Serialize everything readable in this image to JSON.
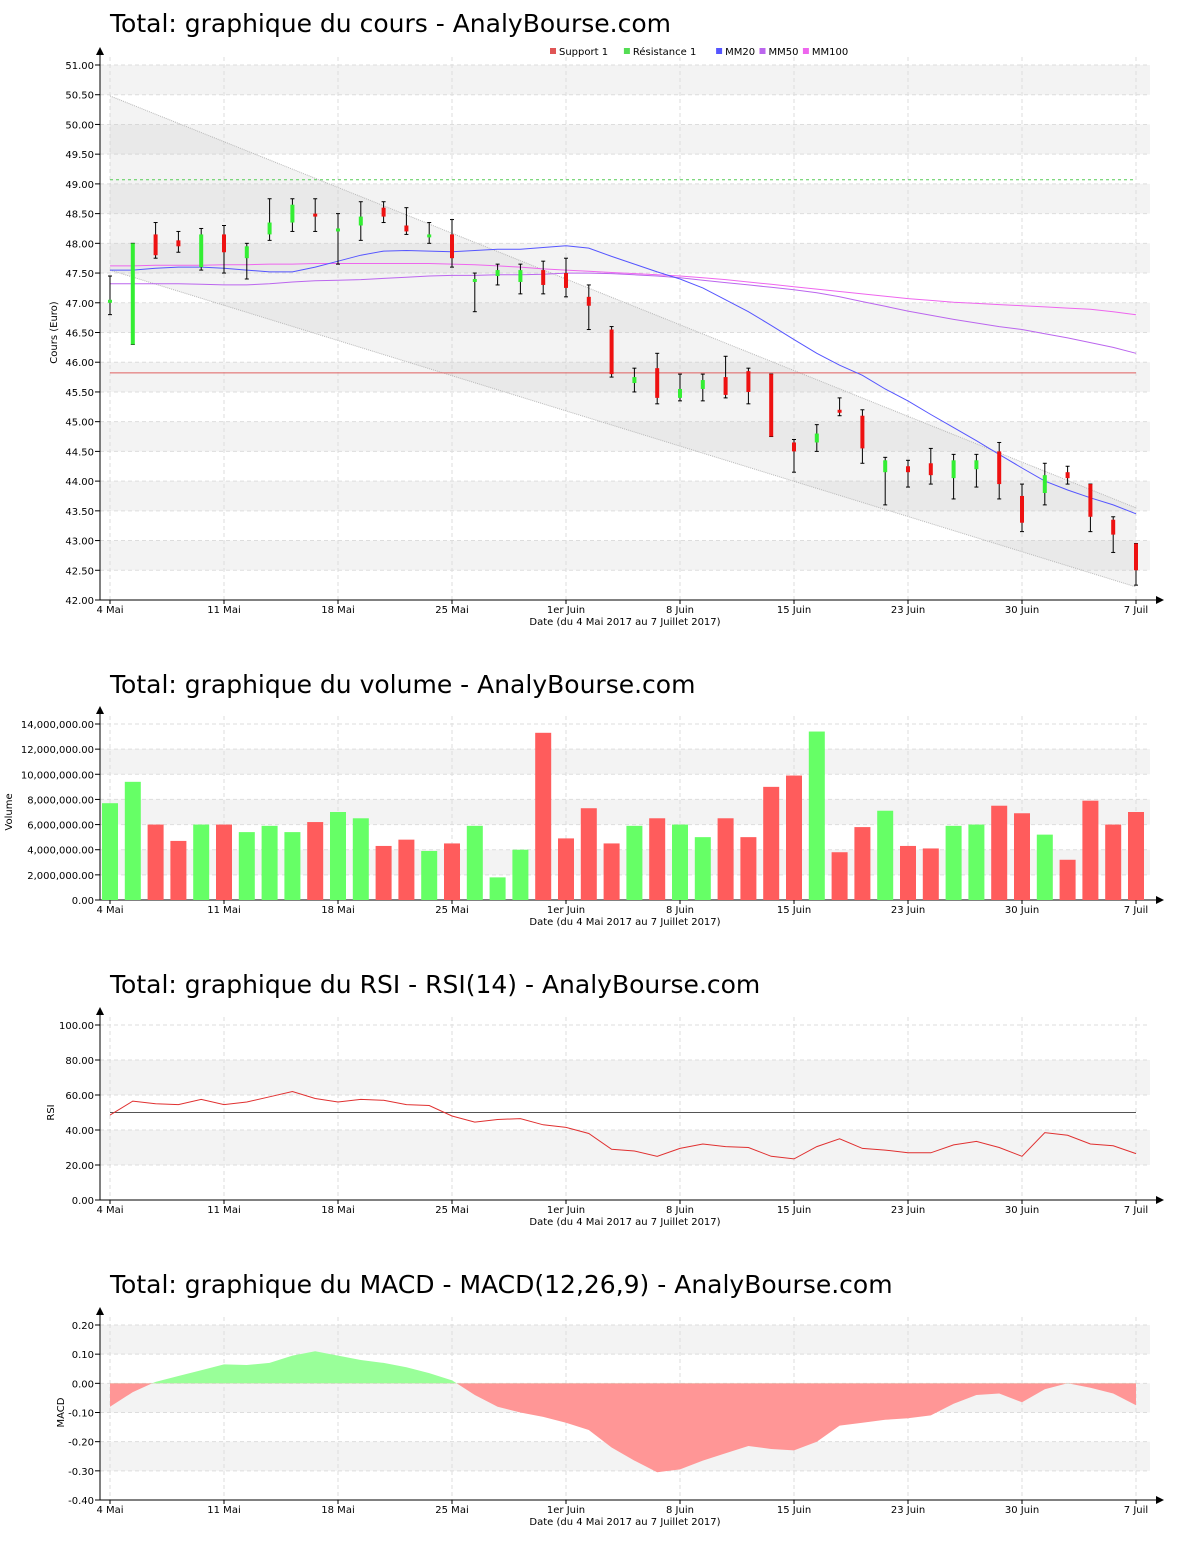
{
  "charts": {
    "price": {
      "title": "Total: graphique du cours - AnalyBourse.com",
      "ylabel": "Cours (Euro)",
      "xlabel": "Date (du 4 Mai 2017 au 7 Juillet 2017)",
      "legend": [
        "Support 1",
        "Résistance 1",
        "MM20",
        "MM50",
        "MM100"
      ]
    },
    "volume": {
      "title": "Total: graphique du volume - AnalyBourse.com",
      "ylabel": "Volume",
      "xlabel": "Date (du 4 Mai 2017 au 7 Juillet 2017)"
    },
    "rsi": {
      "title": "Total: graphique du RSI - RSI(14) - AnalyBourse.com",
      "ylabel": "RSI",
      "xlabel": "Date (du 4 Mai 2017 au 7 Juillet 2017)"
    },
    "macd": {
      "title": "Total: graphique du MACD - MACD(12,26,9) - AnalyBourse.com",
      "ylabel": "MACD",
      "xlabel": "Date (du 4 Mai 2017 au 7 Juillet 2017)"
    }
  },
  "chart_data": [
    {
      "type": "candlestick",
      "title": "Total: graphique du cours - AnalyBourse.com",
      "xlabel": "Date (du 4 Mai 2017 au 7 Juillet 2017)",
      "ylabel": "Cours (Euro)",
      "ylim": [
        42.0,
        51.0
      ],
      "yticks": [
        "42.00",
        "42.50",
        "43.00",
        "43.50",
        "44.00",
        "44.50",
        "45.00",
        "45.50",
        "46.00",
        "46.50",
        "47.00",
        "47.50",
        "48.00",
        "48.50",
        "49.00",
        "49.50",
        "50.00",
        "50.50",
        "51.00"
      ],
      "xticks": [
        {
          "label": "4 Mai",
          "index": 0
        },
        {
          "label": "11 Mai",
          "index": 5
        },
        {
          "label": "18 Mai",
          "index": 10
        },
        {
          "label": "25 Mai",
          "index": 15
        },
        {
          "label": "1er Juin",
          "index": 20
        },
        {
          "label": "8 Juin",
          "index": 25
        },
        {
          "label": "15 Juin",
          "index": 30
        },
        {
          "label": "23 Juin",
          "index": 35
        },
        {
          "label": "30 Juin",
          "index": 40
        },
        {
          "label": "7 Juil",
          "index": 45
        }
      ],
      "legend": [
        "Support 1",
        "Résistance 1",
        "MM20",
        "MM50",
        "MM100"
      ],
      "legend_colors": [
        "#e05555",
        "#55dd55",
        "#5555ff",
        "#bb66ee",
        "#ee66ee"
      ],
      "candles": [
        {
          "o": 47.0,
          "c": 47.05,
          "h": 47.45,
          "l": 46.8
        },
        {
          "o": 46.3,
          "c": 48.0,
          "h": 48.0,
          "l": 46.3
        },
        {
          "o": 48.15,
          "c": 47.8,
          "h": 48.35,
          "l": 47.75
        },
        {
          "o": 48.05,
          "c": 47.95,
          "h": 48.2,
          "l": 47.85
        },
        {
          "o": 47.6,
          "c": 48.15,
          "h": 48.25,
          "l": 47.55
        },
        {
          "o": 48.15,
          "c": 47.85,
          "h": 48.3,
          "l": 47.5
        },
        {
          "o": 47.75,
          "c": 47.95,
          "h": 48.0,
          "l": 47.4
        },
        {
          "o": 48.15,
          "c": 48.35,
          "h": 48.75,
          "l": 48.05
        },
        {
          "o": 48.35,
          "c": 48.65,
          "h": 48.75,
          "l": 48.2
        },
        {
          "o": 48.5,
          "c": 48.45,
          "h": 48.75,
          "l": 48.2
        },
        {
          "o": 48.2,
          "c": 48.25,
          "h": 48.5,
          "l": 47.65
        },
        {
          "o": 48.3,
          "c": 48.45,
          "h": 48.7,
          "l": 48.05
        },
        {
          "o": 48.6,
          "c": 48.45,
          "h": 48.7,
          "l": 48.35
        },
        {
          "o": 48.3,
          "c": 48.2,
          "h": 48.6,
          "l": 48.15
        },
        {
          "o": 48.1,
          "c": 48.15,
          "h": 48.35,
          "l": 48.0
        },
        {
          "o": 48.15,
          "c": 47.75,
          "h": 48.4,
          "l": 47.6
        },
        {
          "o": 47.35,
          "c": 47.4,
          "h": 47.5,
          "l": 46.85
        },
        {
          "o": 47.45,
          "c": 47.55,
          "h": 47.65,
          "l": 47.3
        },
        {
          "o": 47.35,
          "c": 47.55,
          "h": 47.65,
          "l": 47.15
        },
        {
          "o": 47.55,
          "c": 47.3,
          "h": 47.7,
          "l": 47.15
        },
        {
          "o": 47.5,
          "c": 47.25,
          "h": 47.75,
          "l": 47.1
        },
        {
          "o": 47.1,
          "c": 46.95,
          "h": 47.3,
          "l": 46.55
        },
        {
          "o": 46.55,
          "c": 45.8,
          "h": 46.6,
          "l": 45.75
        },
        {
          "o": 45.65,
          "c": 45.75,
          "h": 45.9,
          "l": 45.5
        },
        {
          "o": 45.9,
          "c": 45.4,
          "h": 46.15,
          "l": 45.3
        },
        {
          "o": 45.4,
          "c": 45.55,
          "h": 45.8,
          "l": 45.35
        },
        {
          "o": 45.55,
          "c": 45.7,
          "h": 45.8,
          "l": 45.35
        },
        {
          "o": 45.75,
          "c": 45.45,
          "h": 46.1,
          "l": 45.4
        },
        {
          "o": 45.85,
          "c": 45.5,
          "h": 45.9,
          "l": 45.3
        },
        {
          "o": 45.8,
          "c": 44.75,
          "h": 45.8,
          "l": 44.75
        },
        {
          "o": 44.65,
          "c": 44.5,
          "h": 44.7,
          "l": 44.15
        },
        {
          "o": 44.65,
          "c": 44.8,
          "h": 44.95,
          "l": 44.5
        },
        {
          "o": 45.2,
          "c": 45.15,
          "h": 45.4,
          "l": 45.1
        },
        {
          "o": 45.1,
          "c": 44.55,
          "h": 45.2,
          "l": 44.3
        },
        {
          "o": 44.15,
          "c": 44.35,
          "h": 44.4,
          "l": 43.6
        },
        {
          "o": 44.25,
          "c": 44.15,
          "h": 44.35,
          "l": 43.9
        },
        {
          "o": 44.3,
          "c": 44.1,
          "h": 44.55,
          "l": 43.95
        },
        {
          "o": 44.05,
          "c": 44.35,
          "h": 44.45,
          "l": 43.7
        },
        {
          "o": 44.2,
          "c": 44.35,
          "h": 44.45,
          "l": 43.9
        },
        {
          "o": 44.5,
          "c": 43.95,
          "h": 44.65,
          "l": 43.7
        },
        {
          "o": 43.75,
          "c": 43.3,
          "h": 43.95,
          "l": 43.15
        },
        {
          "o": 43.8,
          "c": 44.1,
          "h": 44.3,
          "l": 43.6
        },
        {
          "o": 44.15,
          "c": 44.05,
          "h": 44.25,
          "l": 43.95
        },
        {
          "o": 43.95,
          "c": 43.4,
          "h": 43.95,
          "l": 43.15
        },
        {
          "o": 43.35,
          "c": 43.1,
          "h": 43.4,
          "l": 42.8
        },
        {
          "o": 42.95,
          "c": 42.5,
          "h": 42.95,
          "l": 42.25
        }
      ],
      "support_1": 45.82,
      "resistance_1": 49.07,
      "channel": {
        "upper": [
          50.48,
          43.55
        ],
        "lower": [
          47.55,
          42.22
        ]
      },
      "mm20": [
        47.55,
        47.55,
        47.58,
        47.6,
        47.6,
        47.58,
        47.55,
        47.52,
        47.52,
        47.6,
        47.7,
        47.8,
        47.87,
        47.88,
        47.87,
        47.86,
        47.88,
        47.9,
        47.9,
        47.93,
        47.96,
        47.92,
        47.78,
        47.65,
        47.52,
        47.4,
        47.25,
        47.05,
        46.85,
        46.62,
        46.38,
        46.15,
        45.95,
        45.78,
        45.55,
        45.35,
        45.12,
        44.9,
        44.68,
        44.45,
        44.22,
        44.0,
        43.85,
        43.72,
        43.6,
        43.45
      ],
      "mm50": [
        47.32,
        47.32,
        47.32,
        47.32,
        47.31,
        47.3,
        47.3,
        47.32,
        47.35,
        47.37,
        47.38,
        47.39,
        47.41,
        47.43,
        47.45,
        47.46,
        47.46,
        47.47,
        47.47,
        47.48,
        47.5,
        47.5,
        47.49,
        47.47,
        47.45,
        47.42,
        47.38,
        47.34,
        47.3,
        47.26,
        47.22,
        47.17,
        47.1,
        47.02,
        46.94,
        46.86,
        46.79,
        46.72,
        46.66,
        46.6,
        46.55,
        46.48,
        46.41,
        46.33,
        46.25,
        46.15
      ],
      "mm100": [
        47.62,
        47.62,
        47.63,
        47.63,
        47.63,
        47.64,
        47.64,
        47.65,
        47.65,
        47.66,
        47.66,
        47.66,
        47.66,
        47.66,
        47.66,
        47.65,
        47.64,
        47.62,
        47.6,
        47.57,
        47.55,
        47.53,
        47.51,
        47.49,
        47.47,
        47.45,
        47.42,
        47.39,
        47.35,
        47.31,
        47.27,
        47.23,
        47.19,
        47.15,
        47.11,
        47.07,
        47.04,
        47.01,
        46.99,
        46.97,
        46.95,
        46.93,
        46.91,
        46.89,
        46.85,
        46.8
      ]
    },
    {
      "type": "bar",
      "title": "Total: graphique du volume - AnalyBourse.com",
      "xlabel": "Date (du 4 Mai 2017 au 7 Juillet 2017)",
      "ylabel": "Volume",
      "ylim": [
        0,
        14000000
      ],
      "yticks": [
        "0.00",
        "2,000,000.00",
        "4,000,000.00",
        "6,000,000.00",
        "8,000,000.00",
        "10,000,000.00",
        "12,000,000.00",
        "14,000,000.00"
      ],
      "xticks": [
        {
          "label": "4 Mai",
          "index": 0
        },
        {
          "label": "11 Mai",
          "index": 5
        },
        {
          "label": "18 Mai",
          "index": 10
        },
        {
          "label": "25 Mai",
          "index": 15
        },
        {
          "label": "1er Juin",
          "index": 20
        },
        {
          "label": "8 Juin",
          "index": 25
        },
        {
          "label": "15 Juin",
          "index": 30
        },
        {
          "label": "23 Juin",
          "index": 35
        },
        {
          "label": "30 Juin",
          "index": 40
        },
        {
          "label": "7 Juil",
          "index": 45
        }
      ],
      "values": [
        7700000,
        9400000,
        6000000,
        4700000,
        6000000,
        6000000,
        5400000,
        5900000,
        5400000,
        6200000,
        7000000,
        6500000,
        4300000,
        4800000,
        3900000,
        4500000,
        5900000,
        1800000,
        4000000,
        13300000,
        4900000,
        7300000,
        4500000,
        5900000,
        6500000,
        6000000,
        5000000,
        6500000,
        5000000,
        9000000,
        9900000,
        13400000,
        3800000,
        5800000,
        7100000,
        4300000,
        4100000,
        5900000,
        6000000,
        7500000,
        6900000,
        5200000,
        3200000,
        7900000,
        6000000,
        7000000
      ],
      "up": [
        true,
        true,
        false,
        false,
        true,
        false,
        true,
        true,
        true,
        false,
        true,
        true,
        false,
        false,
        true,
        false,
        true,
        true,
        true,
        false,
        false,
        false,
        false,
        true,
        false,
        true,
        true,
        false,
        false,
        false,
        false,
        true,
        false,
        false,
        true,
        false,
        false,
        true,
        true,
        false,
        false,
        true,
        false,
        false,
        false,
        false
      ]
    },
    {
      "type": "line",
      "title": "Total: graphique du RSI - RSI(14) - AnalyBourse.com",
      "xlabel": "Date (du 4 Mai 2017 au 7 Juillet 2017)",
      "ylabel": "RSI",
      "ylim": [
        0,
        100
      ],
      "yticks": [
        "0.00",
        "20.00",
        "40.00",
        "60.00",
        "80.00",
        "100.00"
      ],
      "xticks": [
        {
          "label": "4 Mai",
          "index": 0
        },
        {
          "label": "11 Mai",
          "index": 5
        },
        {
          "label": "18 Mai",
          "index": 10
        },
        {
          "label": "25 Mai",
          "index": 15
        },
        {
          "label": "1er Juin",
          "index": 20
        },
        {
          "label": "8 Juin",
          "index": 25
        },
        {
          "label": "15 Juin",
          "index": 30
        },
        {
          "label": "23 Juin",
          "index": 35
        },
        {
          "label": "30 Juin",
          "index": 40
        },
        {
          "label": "7 Juil",
          "index": 45
        }
      ],
      "reference_line": 50,
      "values": [
        48.5,
        56.5,
        55,
        54.5,
        57.5,
        54.5,
        56,
        59,
        62,
        58,
        56,
        57.5,
        57,
        54.5,
        54,
        48,
        44.5,
        46,
        46.5,
        43,
        41.5,
        38,
        29,
        28,
        25,
        29.5,
        32,
        30.5,
        30,
        25,
        23.5,
        30.5,
        35,
        29.5,
        28.5,
        27,
        27,
        31.5,
        33.5,
        30,
        25,
        38.5,
        37,
        32,
        31,
        26.5
      ]
    },
    {
      "type": "area",
      "title": "Total: graphique du MACD - MACD(12,26,9) - AnalyBourse.com",
      "xlabel": "Date (du 4 Mai 2017 au 7 Juillet 2017)",
      "ylabel": "MACD",
      "ylim": [
        -0.4,
        0.2
      ],
      "yticks": [
        "-0.40",
        "-0.30",
        "-0.20",
        "-0.10",
        "0.00",
        "0.10",
        "0.20"
      ],
      "xticks": [
        {
          "label": "4 Mai",
          "index": 0
        },
        {
          "label": "11 Mai",
          "index": 5
        },
        {
          "label": "18 Mai",
          "index": 10
        },
        {
          "label": "25 Mai",
          "index": 15
        },
        {
          "label": "1er Juin",
          "index": 20
        },
        {
          "label": "8 Juin",
          "index": 25
        },
        {
          "label": "15 Juin",
          "index": 30
        },
        {
          "label": "23 Juin",
          "index": 35
        },
        {
          "label": "30 Juin",
          "index": 40
        },
        {
          "label": "7 Juil",
          "index": 45
        }
      ],
      "values": [
        -0.08,
        -0.03,
        0.005,
        0.025,
        0.045,
        0.065,
        0.063,
        0.07,
        0.095,
        0.11,
        0.095,
        0.08,
        0.07,
        0.055,
        0.035,
        0.01,
        -0.04,
        -0.08,
        -0.1,
        -0.115,
        -0.135,
        -0.16,
        -0.22,
        -0.265,
        -0.305,
        -0.295,
        -0.265,
        -0.24,
        -0.215,
        -0.225,
        -0.23,
        -0.2,
        -0.145,
        -0.135,
        -0.125,
        -0.12,
        -0.11,
        -0.07,
        -0.04,
        -0.035,
        -0.065,
        -0.02,
        0.0,
        -0.015,
        -0.035,
        -0.075
      ]
    }
  ]
}
